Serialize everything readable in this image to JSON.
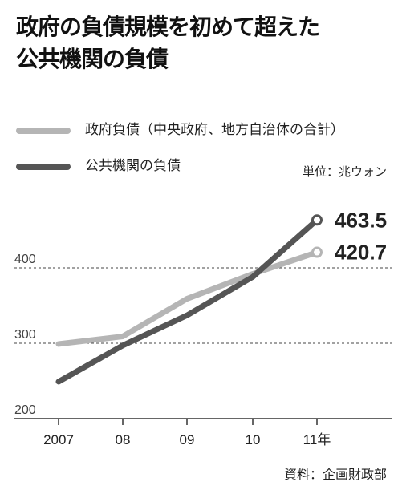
{
  "title_lines": [
    "政府の負債規模を初めて超えた",
    "公共機関の負債"
  ],
  "unit": "単位：兆ウォン",
  "source": "資料：企画財政部",
  "chart_data": {
    "type": "line",
    "x": [
      "2007",
      "08",
      "09",
      "10",
      "11年"
    ],
    "ylim": [
      200,
      480
    ],
    "yticks": [
      200,
      300,
      400
    ],
    "grid": true,
    "legend_position": "top-left",
    "series": [
      {
        "name": "政府負債（中央政府、地方自治体の合計）",
        "color": "#b5b5b5",
        "values": [
          299,
          309,
          359,
          392,
          420.7
        ]
      },
      {
        "name": "公共機関の負債",
        "color": "#555555",
        "values": [
          249,
          297,
          337,
          388,
          463.5
        ]
      }
    ],
    "data_labels": [
      {
        "series": 1,
        "index": 4,
        "text": "463.5"
      },
      {
        "series": 0,
        "index": 4,
        "text": "420.7"
      }
    ]
  }
}
